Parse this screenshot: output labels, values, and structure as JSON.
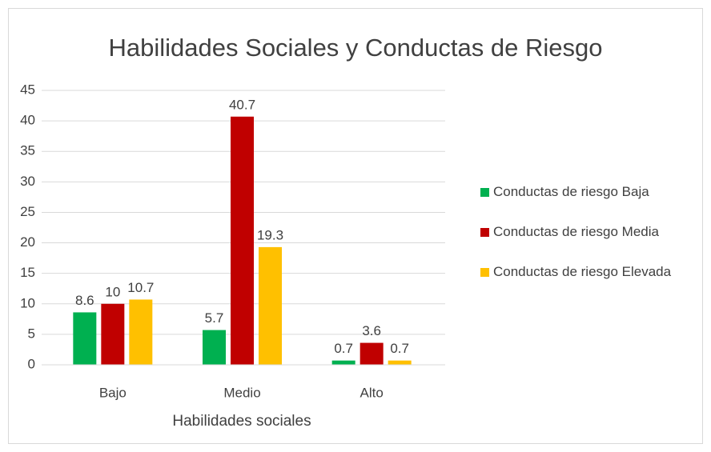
{
  "chart_data": {
    "type": "bar",
    "title": "Habilidades Sociales y Conductas de Riesgo",
    "x_label": "Habilidades sociales",
    "categories": [
      "Bajo",
      "Medio",
      "Alto"
    ],
    "series": [
      {
        "name": "Conductas de riesgo Baja",
        "color": "#00b050",
        "values": [
          8.6,
          5.7,
          0.7
        ]
      },
      {
        "name": "Conductas de riesgo Media",
        "color": "#c00000",
        "values": [
          10,
          40.7,
          3.6
        ]
      },
      {
        "name": "Conductas de riesgo Elevada",
        "color": "#ffc000",
        "values": [
          10.7,
          19.3,
          0.7
        ]
      }
    ],
    "ylim": [
      0,
      45
    ],
    "yticks": [
      0,
      5,
      10,
      15,
      20,
      25,
      30,
      35,
      40,
      45
    ],
    "grid": true,
    "legend": "right"
  }
}
